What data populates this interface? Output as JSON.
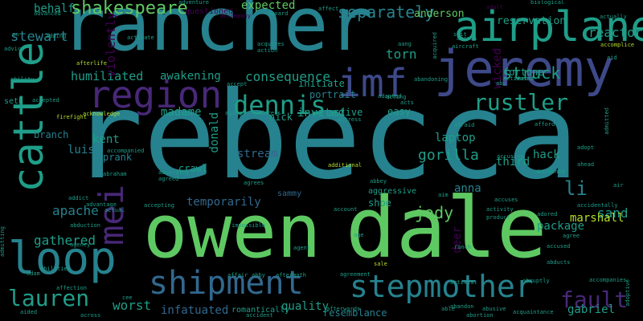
{
  "palette": {
    "background": "#000000",
    "yellow-green": "#b5de2b",
    "green": "#5ec962",
    "teal": "#1f9e89",
    "teal-blue": "#26828e",
    "blue": "#31688e",
    "indigo": "#3e4989",
    "violet": "#482878",
    "deep-purple": "#440154"
  },
  "words": [
    {
      "text": "rebecca",
      "color": "teal-blue",
      "vertical": false
    },
    {
      "text": "owen",
      "color": "green",
      "vertical": false
    },
    {
      "text": "dale",
      "color": "green",
      "vertical": false
    },
    {
      "text": "rancher",
      "color": "teal-blue",
      "vertical": false
    },
    {
      "text": "jeremy",
      "color": "indigo",
      "vertical": false
    },
    {
      "text": "cattle",
      "color": "teal",
      "vertical": true
    },
    {
      "text": "airplane",
      "color": "teal",
      "vertical": false
    },
    {
      "text": "loop",
      "color": "teal-blue",
      "vertical": false
    },
    {
      "text": "imf",
      "color": "indigo",
      "vertical": false
    },
    {
      "text": "region",
      "color": "violet",
      "vertical": false
    },
    {
      "text": "shipment",
      "color": "blue",
      "vertical": false
    },
    {
      "text": "stepmother",
      "color": "teal-blue",
      "vertical": false
    },
    {
      "text": "mei",
      "color": "violet",
      "vertical": true
    },
    {
      "text": "dennis",
      "color": "teal",
      "vertical": false
    },
    {
      "text": "rustler",
      "color": "teal",
      "vertical": false
    },
    {
      "text": "fault",
      "color": "violet",
      "vertical": false
    },
    {
      "text": "lauren",
      "color": "teal",
      "vertical": false
    },
    {
      "text": "shakespeare",
      "color": "green",
      "vertical": false
    },
    {
      "text": "separately",
      "color": "teal-blue",
      "vertical": false
    },
    {
      "text": "struck",
      "color": "teal",
      "vertical": false
    },
    {
      "text": "jody",
      "color": "green",
      "vertical": false
    },
    {
      "text": "gorilla",
      "color": "teal",
      "vertical": false
    },
    {
      "text": "stewart",
      "color": "teal-blue",
      "vertical": false
    },
    {
      "text": "reactor",
      "color": "teal",
      "vertical": false
    },
    {
      "text": "humiliated",
      "color": "teal",
      "vertical": false
    },
    {
      "text": "consequence",
      "color": "teal",
      "vertical": false
    },
    {
      "text": "torn",
      "color": "teal",
      "vertical": false
    },
    {
      "text": "sand",
      "color": "teal",
      "vertical": false
    },
    {
      "text": "worst",
      "color": "teal",
      "vertical": false
    },
    {
      "text": "gathered",
      "color": "teal",
      "vertical": false
    },
    {
      "text": "apache",
      "color": "teal-blue",
      "vertical": false
    },
    {
      "text": "marshall",
      "color": "yellow-green",
      "vertical": false
    },
    {
      "text": "li",
      "color": "teal-blue",
      "vertical": false
    },
    {
      "text": "infatuated",
      "color": "blue",
      "vertical": false
    },
    {
      "text": "quality",
      "color": "teal",
      "vertical": false
    },
    {
      "text": "gabriel",
      "color": "teal",
      "vertical": false
    },
    {
      "text": "anderson",
      "color": "green",
      "vertical": false
    },
    {
      "text": "reservation",
      "color": "teal",
      "vertical": false
    },
    {
      "text": "violently",
      "color": "deep-purple",
      "vertical": true
    },
    {
      "text": "portrait",
      "color": "teal-blue",
      "vertical": false
    },
    {
      "text": "invited",
      "color": "teal",
      "vertical": false
    },
    {
      "text": "madame",
      "color": "teal",
      "vertical": false
    },
    {
      "text": "laptop",
      "color": "teal",
      "vertical": false
    },
    {
      "text": "kent",
      "color": "teal",
      "vertical": false
    },
    {
      "text": "package",
      "color": "teal",
      "vertical": false
    },
    {
      "text": "expected",
      "color": "green",
      "vertical": false
    },
    {
      "text": "behalf",
      "color": "teal",
      "vertical": false
    },
    {
      "text": "luis",
      "color": "teal-blue",
      "vertical": false
    },
    {
      "text": "hack",
      "color": "teal",
      "vertical": false
    },
    {
      "text": "anna",
      "color": "teal-blue",
      "vertical": false
    },
    {
      "text": "third",
      "color": "teal",
      "vertical": false
    },
    {
      "text": "stream",
      "color": "blue",
      "vertical": false
    },
    {
      "text": "temporarily",
      "color": "blue",
      "vertical": false
    },
    {
      "text": "awakening",
      "color": "teal",
      "vertical": false
    },
    {
      "text": "initiate",
      "color": "teal",
      "vertical": false
    },
    {
      "text": "resemblance",
      "color": "teal-blue",
      "vertical": false
    },
    {
      "text": "crawl",
      "color": "teal",
      "vertical": false
    },
    {
      "text": "fortune",
      "color": "teal",
      "vertical": false
    },
    {
      "text": "active",
      "color": "teal",
      "vertical": false
    },
    {
      "text": "easy",
      "color": "teal",
      "vertical": false
    },
    {
      "text": "wicked",
      "color": "deep-purple",
      "vertical": true
    },
    {
      "text": "donald",
      "color": "teal",
      "vertical": true
    },
    {
      "text": "seth",
      "color": "teal",
      "vertical": false
    },
    {
      "text": "branch",
      "color": "teal-blue",
      "vertical": false
    },
    {
      "text": "prank",
      "color": "teal-blue",
      "vertical": false
    },
    {
      "text": "deer",
      "color": "deep-purple",
      "vertical": true
    },
    {
      "text": "sammy",
      "color": "blue",
      "vertical": false
    },
    {
      "text": "nick",
      "color": "teal",
      "vertical": false
    },
    {
      "text": "questioned",
      "color": "deep-purple",
      "vertical": false
    },
    {
      "text": "shoe",
      "color": "teal",
      "vertical": false
    },
    {
      "text": "ranch",
      "color": "teal",
      "vertical": false
    },
    {
      "text": "romantically",
      "color": "teal",
      "vertical": false
    },
    {
      "text": "aggressive",
      "color": "teal",
      "vertical": false
    },
    {
      "text": "adventure",
      "color": "teal",
      "vertical": false
    },
    {
      "text": "affect",
      "color": "teal",
      "vertical": false
    },
    {
      "text": "adult",
      "color": "deep-purple",
      "vertical": false
    },
    {
      "text": "biological",
      "color": "teal",
      "vertical": false
    },
    {
      "text": "aboard",
      "color": "teal",
      "vertical": false
    },
    {
      "text": "advanced",
      "color": "teal",
      "vertical": false
    },
    {
      "text": "accompany",
      "color": "deep-purple",
      "vertical": false
    },
    {
      "text": "actually",
      "color": "teal",
      "vertical": false
    },
    {
      "text": "acquires",
      "color": "teal",
      "vertical": false
    },
    {
      "text": "action",
      "color": "teal",
      "vertical": false
    },
    {
      "text": "activate",
      "color": "teal",
      "vertical": false
    },
    {
      "text": "aircraft",
      "color": "teal",
      "vertical": false
    },
    {
      "text": "advice",
      "color": "teal",
      "vertical": false
    },
    {
      "text": "adding",
      "color": "teal",
      "vertical": false
    },
    {
      "text": "accomplice",
      "color": "yellow-green",
      "vertical": false
    },
    {
      "text": "aid",
      "color": "teal",
      "vertical": false
    },
    {
      "text": "afterlife",
      "color": "yellow-green",
      "vertical": false
    },
    {
      "text": "ability",
      "color": "teal",
      "vertical": false
    },
    {
      "text": "accepted",
      "color": "teal",
      "vertical": false
    },
    {
      "text": "acknowledge",
      "color": "yellow-green",
      "vertical": false
    },
    {
      "text": "firefight",
      "color": "yellow-green",
      "vertical": false
    },
    {
      "text": "accept",
      "color": "teal",
      "vertical": false
    },
    {
      "text": "aging",
      "color": "teal",
      "vertical": false
    },
    {
      "text": "address",
      "color": "teal",
      "vertical": false
    },
    {
      "text": "acting",
      "color": "teal",
      "vertical": false
    },
    {
      "text": "abandoning",
      "color": "teal",
      "vertical": false
    },
    {
      "text": "actress",
      "color": "teal",
      "vertical": false
    },
    {
      "text": "afraid",
      "color": "teal",
      "vertical": false
    },
    {
      "text": "abu",
      "color": "teal",
      "vertical": false
    },
    {
      "text": "abe",
      "color": "teal",
      "vertical": false
    },
    {
      "text": "act",
      "color": "teal",
      "vertical": false
    },
    {
      "text": "afford",
      "color": "teal",
      "vertical": false
    },
    {
      "text": "admitted",
      "color": "teal",
      "vertical": true
    },
    {
      "text": "accusing",
      "color": "teal",
      "vertical": false
    },
    {
      "text": "adopt",
      "color": "teal",
      "vertical": false
    },
    {
      "text": "abandoned",
      "color": "teal",
      "vertical": false
    },
    {
      "text": "ahead",
      "color": "teal",
      "vertical": false
    },
    {
      "text": "air",
      "color": "teal",
      "vertical": false
    },
    {
      "text": "accompanied",
      "color": "teal",
      "vertical": false
    },
    {
      "text": "abraham",
      "color": "teal",
      "vertical": false
    },
    {
      "text": "according",
      "color": "teal",
      "vertical": false
    },
    {
      "text": "agreed",
      "color": "teal",
      "vertical": false
    },
    {
      "text": "agrees",
      "color": "teal",
      "vertical": false
    },
    {
      "text": "additional",
      "color": "yellow-green",
      "vertical": false
    },
    {
      "text": "abbey",
      "color": "teal",
      "vertical": false
    },
    {
      "text": "aim",
      "color": "teal",
      "vertical": false
    },
    {
      "text": "accuses",
      "color": "teal",
      "vertical": false
    },
    {
      "text": "accidentally",
      "color": "teal",
      "vertical": false
    },
    {
      "text": "addict",
      "color": "teal",
      "vertical": false
    },
    {
      "text": "advantage",
      "color": "teal",
      "vertical": false
    },
    {
      "text": "actual",
      "color": "teal",
      "vertical": false
    },
    {
      "text": "accepting",
      "color": "teal",
      "vertical": false
    },
    {
      "text": "impossible",
      "color": "teal",
      "vertical": false
    },
    {
      "text": "account",
      "color": "teal",
      "vertical": false
    },
    {
      "text": "activity",
      "color": "teal",
      "vertical": false
    },
    {
      "text": "adored",
      "color": "teal",
      "vertical": false
    },
    {
      "text": "product",
      "color": "teal",
      "vertical": false
    },
    {
      "text": "abduction",
      "color": "teal",
      "vertical": false
    },
    {
      "text": "agency",
      "color": "teal",
      "vertical": false
    },
    {
      "text": "age",
      "color": "teal",
      "vertical": false
    },
    {
      "text": "accused",
      "color": "teal",
      "vertical": false
    },
    {
      "text": "agree",
      "color": "teal",
      "vertical": false
    },
    {
      "text": "abducts",
      "color": "teal",
      "vertical": false
    },
    {
      "text": "agent",
      "color": "teal",
      "vertical": false
    },
    {
      "text": "affair",
      "color": "teal",
      "vertical": false
    },
    {
      "text": "abby",
      "color": "teal",
      "vertical": false
    },
    {
      "text": "sale",
      "color": "yellow-green",
      "vertical": false
    },
    {
      "text": "agreement",
      "color": "teal",
      "vertical": false
    },
    {
      "text": "aftermath",
      "color": "teal",
      "vertical": false
    },
    {
      "text": "activist",
      "color": "teal",
      "vertical": false
    },
    {
      "text": "abruptly",
      "color": "teal",
      "vertical": false
    },
    {
      "text": "accompanies",
      "color": "teal",
      "vertical": false
    },
    {
      "text": "adam",
      "color": "teal",
      "vertical": false
    },
    {
      "text": "affection",
      "color": "teal",
      "vertical": false
    },
    {
      "text": "abandon",
      "color": "teal",
      "vertical": false
    },
    {
      "text": "able",
      "color": "teal",
      "vertical": false
    },
    {
      "text": "abusive",
      "color": "teal",
      "vertical": false
    },
    {
      "text": "acquaintance",
      "color": "teal",
      "vertical": false
    },
    {
      "text": "aided",
      "color": "teal",
      "vertical": false
    },
    {
      "text": "across",
      "color": "teal",
      "vertical": false
    },
    {
      "text": "accident",
      "color": "teal",
      "vertical": false
    },
    {
      "text": "afterwards",
      "color": "teal",
      "vertical": false
    },
    {
      "text": "abortion",
      "color": "teal",
      "vertical": false
    },
    {
      "text": "adoptive",
      "color": "teal",
      "vertical": true
    },
    {
      "text": "admitting",
      "color": "teal",
      "vertical": true
    },
    {
      "text": "acquired",
      "color": "teal",
      "vertical": true
    },
    {
      "text": "activated",
      "color": "teal",
      "vertical": false
    },
    {
      "text": "aang",
      "color": "teal",
      "vertical": false
    },
    {
      "text": "suit",
      "color": "teal",
      "vertical": false
    },
    {
      "text": "access",
      "color": "teal",
      "vertical": false
    },
    {
      "text": "an",
      "color": "teal",
      "vertical": false
    },
    {
      "text": "acts",
      "color": "teal",
      "vertical": false
    },
    {
      "text": "adapted",
      "color": "teal",
      "vertical": false
    },
    {
      "text": "cee",
      "color": "teal",
      "vertical": false
    },
    {
      "text": "abilities",
      "color": "teal",
      "vertical": false
    }
  ]
}
